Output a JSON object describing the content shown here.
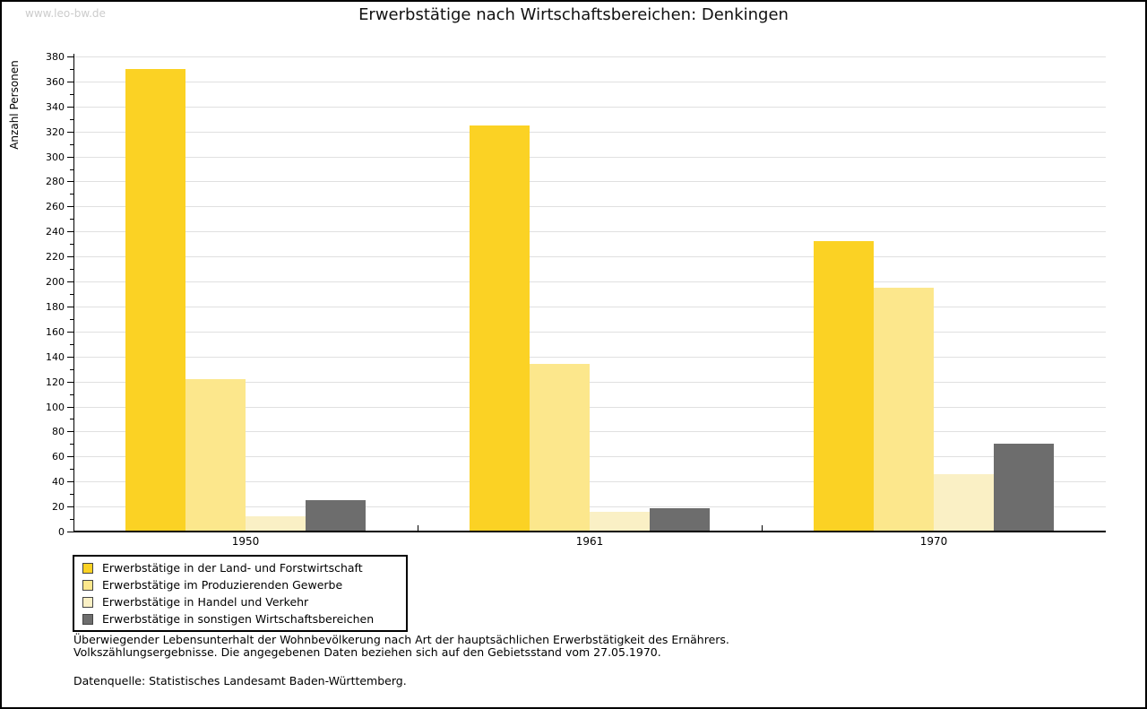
{
  "header": {
    "watermark": "www.leo-bw.de"
  },
  "chart_data": {
    "type": "bar",
    "title": "Erwerbstätige nach Wirtschaftsbereichen: Denkingen",
    "ylabel": "Anzahl Personen",
    "xlabel": "",
    "categories": [
      "1950",
      "1961",
      "1970"
    ],
    "series": [
      {
        "name": "Erwerbstätige in der Land- und Forstwirtschaft",
        "color": "#FBD224",
        "values": [
          370,
          325,
          232
        ]
      },
      {
        "name": "Erwerbstätige im Produzierenden Gewerbe",
        "color": "#FCE78C",
        "values": [
          122,
          134,
          195
        ]
      },
      {
        "name": "Erwerbstätige in Handel und Verkehr",
        "color": "#FAF0C5",
        "values": [
          12,
          16,
          46
        ]
      },
      {
        "name": "Erwerbstätige in sonstigen Wirtschaftsbereichen",
        "color": "#6D6D6D",
        "values": [
          25,
          19,
          70
        ]
      }
    ],
    "ylim": [
      0,
      380
    ],
    "ytick_step": 20,
    "ytick_minor_step": 10,
    "grid": true,
    "legend_position": "bottom-left"
  },
  "footer": {
    "line1": "Überwiegender Lebensunterhalt der Wohnbevölkerung nach Art der hauptsächlichen Erwerbstätigkeit des Ernährers.",
    "line2": "Volkszählungsergebnisse. Die angegebenen Daten beziehen sich auf den Gebietsstand vom 27.05.1970.",
    "source": "Datenquelle: Statistisches Landesamt Baden-Württemberg."
  },
  "colors": {
    "background": "#FFFFFF",
    "axis": "#000000",
    "gridline": "#E0E0E0",
    "watermark": "#CCCCCC",
    "swatch_border": "#444444"
  }
}
